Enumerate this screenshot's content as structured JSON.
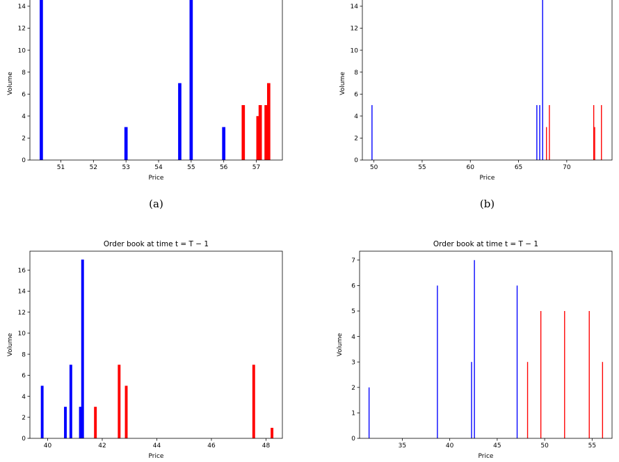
{
  "chart_data": [
    {
      "type": "bar",
      "title": "",
      "caption": "(a)",
      "xlabel": "Price",
      "ylabel": "Volume",
      "xlim": [
        50.05,
        57.8
      ],
      "ylim": [
        0,
        15.2
      ],
      "xticks": [
        51,
        52,
        53,
        54,
        55,
        56,
        57
      ],
      "yticks": [
        0,
        2,
        4,
        6,
        8,
        10,
        12,
        14
      ],
      "bar_width": 0.1,
      "grid": false,
      "series": [
        {
          "color": "#0000ff",
          "points": [
            [
              50.4,
              16
            ],
            [
              53.0,
              3
            ],
            [
              54.65,
              7
            ],
            [
              55.0,
              15
            ],
            [
              56.0,
              3
            ]
          ]
        },
        {
          "color": "#ff0000",
          "points": [
            [
              56.6,
              5
            ],
            [
              57.05,
              4
            ],
            [
              57.12,
              5
            ],
            [
              57.3,
              5
            ],
            [
              57.38,
              7
            ]
          ]
        }
      ]
    },
    {
      "type": "bar",
      "title": "",
      "caption": "(b)",
      "xlabel": "Price",
      "ylabel": "Volume",
      "xlim": [
        48.8,
        74.7
      ],
      "ylim": [
        0,
        15.2
      ],
      "xticks": [
        50,
        55,
        60,
        65,
        70
      ],
      "yticks": [
        0,
        2,
        4,
        6,
        8,
        10,
        12,
        14
      ],
      "bar_width": 0.1,
      "grid": false,
      "series": [
        {
          "color": "#0000ff",
          "points": [
            [
              49.8,
              5
            ],
            [
              66.9,
              5
            ],
            [
              67.2,
              5
            ],
            [
              67.5,
              16
            ]
          ]
        },
        {
          "color": "#ff0000",
          "points": [
            [
              67.9,
              3
            ],
            [
              68.2,
              5
            ],
            [
              72.8,
              5
            ],
            [
              72.9,
              3
            ],
            [
              73.6,
              5
            ]
          ]
        }
      ]
    },
    {
      "type": "bar",
      "title": "Order book at time t = T − 1",
      "caption": "",
      "xlabel": "Price",
      "ylabel": "Volume",
      "xlim": [
        39.35,
        48.6
      ],
      "ylim": [
        0,
        17.8
      ],
      "xticks": [
        40,
        42,
        44,
        46,
        48
      ],
      "yticks": [
        0,
        2,
        4,
        6,
        8,
        10,
        12,
        14,
        16
      ],
      "bar_width": 0.1,
      "grid": false,
      "series": [
        {
          "color": "#0000ff",
          "points": [
            [
              39.8,
              5
            ],
            [
              40.65,
              3
            ],
            [
              40.85,
              7
            ],
            [
              41.2,
              3
            ],
            [
              41.28,
              17
            ]
          ]
        },
        {
          "color": "#ff0000",
          "points": [
            [
              41.75,
              3
            ],
            [
              42.62,
              7
            ],
            [
              42.88,
              5
            ],
            [
              47.55,
              7
            ],
            [
              48.22,
              1
            ]
          ]
        }
      ]
    },
    {
      "type": "bar",
      "title": "Order book at time t = T − 1",
      "caption": "",
      "xlabel": "Price",
      "ylabel": "Volume",
      "xlim": [
        30.5,
        57.1
      ],
      "ylim": [
        0,
        7.35
      ],
      "xticks": [
        35,
        40,
        45,
        50,
        55
      ],
      "yticks": [
        0,
        1,
        2,
        3,
        4,
        5,
        6,
        7
      ],
      "bar_width": 0.1,
      "grid": false,
      "series": [
        {
          "color": "#0000ff",
          "points": [
            [
              31.5,
              2
            ],
            [
              38.7,
              6
            ],
            [
              42.3,
              3
            ],
            [
              42.6,
              7
            ],
            [
              47.1,
              6
            ]
          ]
        },
        {
          "color": "#ff0000",
          "points": [
            [
              48.2,
              3
            ],
            [
              49.6,
              5
            ],
            [
              52.1,
              5
            ],
            [
              54.7,
              5
            ],
            [
              56.1,
              3
            ]
          ]
        }
      ]
    }
  ]
}
